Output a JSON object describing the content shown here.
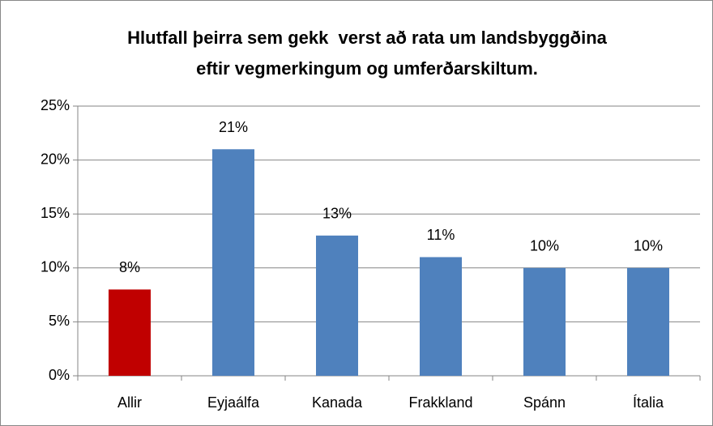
{
  "chart_data": {
    "type": "bar",
    "title": [
      "Hlutfall þeirra sem gekk  verst að rata um landsbyggðina",
      "eftir vegmerkingum og umferðarskiltum."
    ],
    "categories": [
      "Allir",
      "Eyjaálfa",
      "Kanada",
      "Frakkland",
      "Spánn",
      "Ítalia"
    ],
    "values": [
      8,
      21,
      13,
      11,
      10,
      10
    ],
    "value_labels": [
      "8%",
      "21%",
      "13%",
      "11%",
      "10%",
      "10%"
    ],
    "colors": [
      "#c00000",
      "#4f81bd",
      "#4f81bd",
      "#4f81bd",
      "#4f81bd",
      "#4f81bd"
    ],
    "ylim": [
      0,
      25
    ],
    "yticks": [
      {
        "value": 0,
        "label": "0%"
      },
      {
        "value": 5,
        "label": "5%"
      },
      {
        "value": 10,
        "label": "10%"
      },
      {
        "value": 15,
        "label": "15%"
      },
      {
        "value": 20,
        "label": "20%"
      },
      {
        "value": 25,
        "label": "25%"
      }
    ],
    "grid": true
  }
}
